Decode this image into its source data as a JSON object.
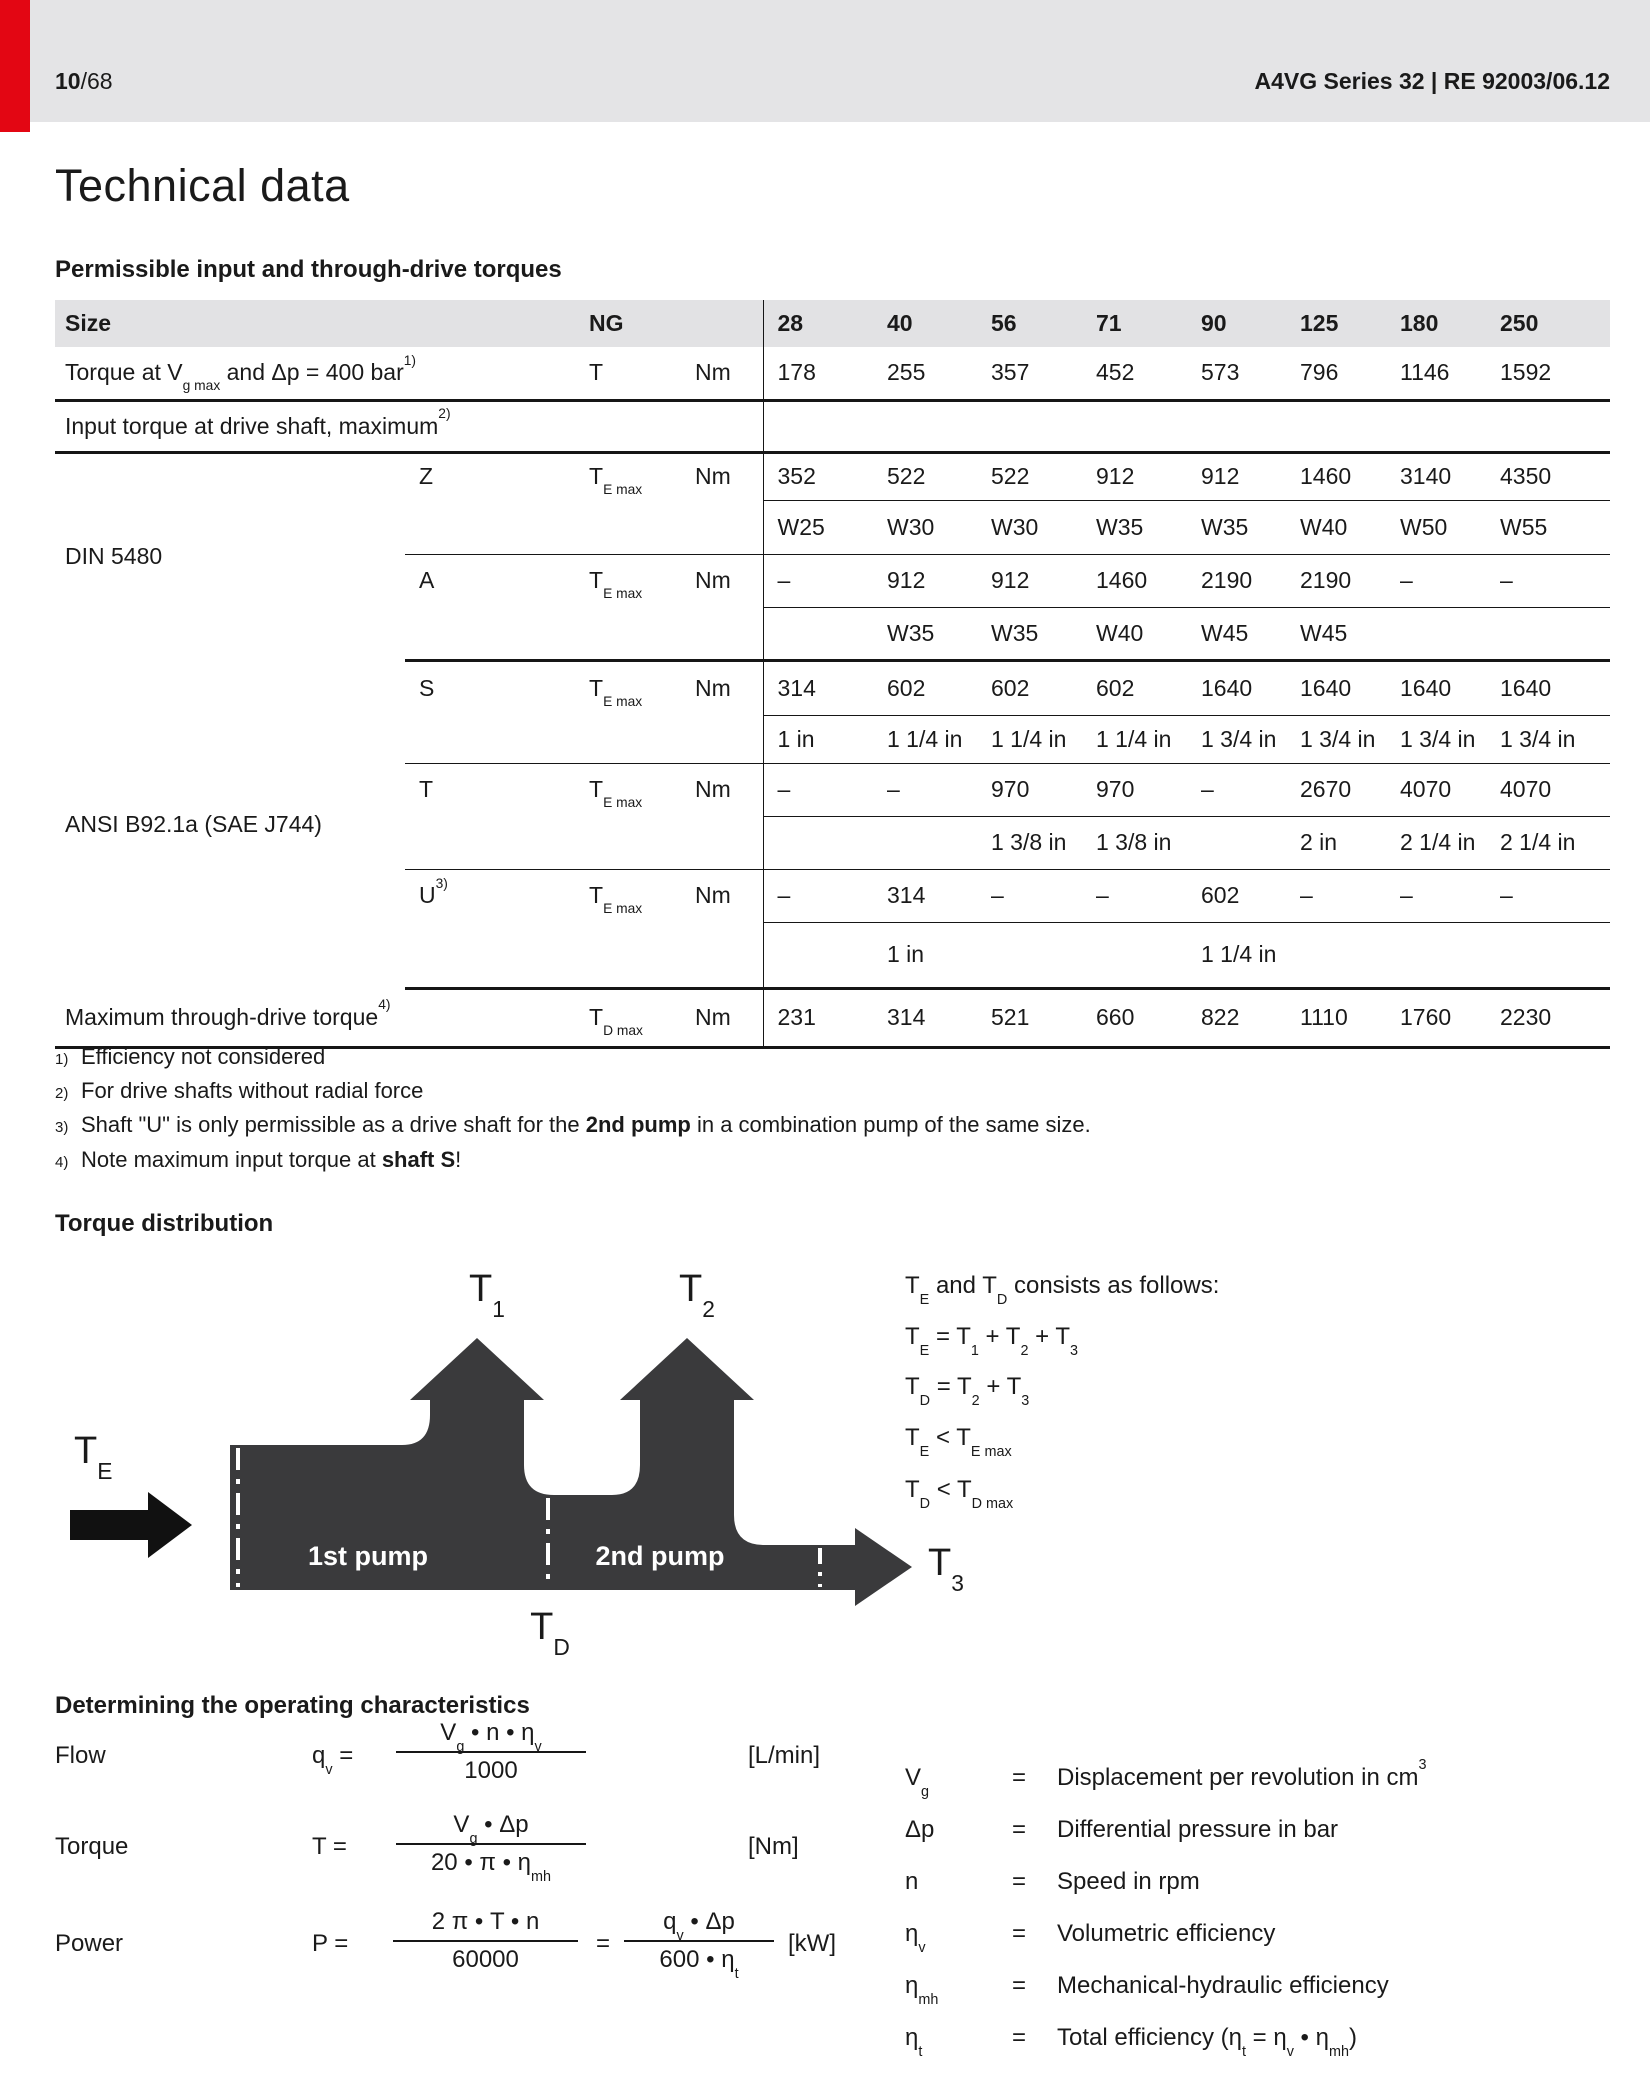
{
  "page": {
    "page_number": "10",
    "page_total": "/68",
    "doc_ref": "A4VG Series 32  |  RE 92003/06.12",
    "title": "Technical data",
    "section_title": "Permissible input and through-drive torques"
  },
  "table": {
    "header": {
      "size": "Size",
      "ng": "NG",
      "sizes": [
        "28",
        "40",
        "56",
        "71",
        "90",
        "125",
        "180",
        "250"
      ]
    },
    "torque_row": {
      "label": "Torque at V_{g max} and Δp = 400 bar^{1)}",
      "symbol": "T",
      "unit": "Nm",
      "values": [
        "178",
        "255",
        "357",
        "452",
        "573",
        "796",
        "1146",
        "1592"
      ]
    },
    "input_torque_label": "Input torque at drive shaft, maximum^{2)}",
    "din": {
      "group": "DIN 5480",
      "z": {
        "shaft": "Z",
        "symbol": "T_{E max}",
        "unit": "Nm",
        "values": [
          "352",
          "522",
          "522",
          "912",
          "912",
          "1460",
          "3140",
          "4350"
        ],
        "sub": [
          "W25",
          "W30",
          "W30",
          "W35",
          "W35",
          "W40",
          "W50",
          "W55"
        ]
      },
      "a": {
        "shaft": "A",
        "symbol": "T_{E max}",
        "unit": "Nm",
        "values": [
          "–",
          "912",
          "912",
          "1460",
          "2190",
          "2190",
          "–",
          "–"
        ],
        "sub": [
          "",
          "W35",
          "W35",
          "W40",
          "W45",
          "W45",
          "",
          ""
        ]
      }
    },
    "ansi": {
      "group": "ANSI B92.1a (SAE J744)",
      "s": {
        "shaft": "S",
        "symbol": "T_{E max}",
        "unit": "Nm",
        "values": [
          "314",
          "602",
          "602",
          "602",
          "1640",
          "1640",
          "1640",
          "1640"
        ],
        "sub": [
          "1 in",
          "1 1/4 in",
          "1 1/4 in",
          "1 1/4 in",
          "1 3/4 in",
          "1 3/4 in",
          "1 3/4 in",
          "1 3/4 in"
        ]
      },
      "t": {
        "shaft": "T",
        "symbol": "T_{E max}",
        "unit": "Nm",
        "values": [
          "–",
          "–",
          "970",
          "970",
          "–",
          "2670",
          "4070",
          "4070"
        ],
        "sub": [
          "",
          "",
          "1 3/8 in",
          "1 3/8 in",
          "",
          "2 in",
          "2 1/4 in",
          "2 1/4 in"
        ]
      },
      "u": {
        "shaft": "U^{3)}",
        "symbol": "T_{E max}",
        "unit": "Nm",
        "values": [
          "–",
          "314",
          "–",
          "–",
          "602",
          "–",
          "–",
          "–"
        ],
        "sub": [
          "",
          "1 in",
          "",
          "",
          "1 1/4 in",
          "",
          "",
          ""
        ]
      }
    },
    "through_drive_row": {
      "label": "Maximum through-drive torque^{4)}",
      "symbol": "T_{D max}",
      "unit": "Nm",
      "values": [
        "231",
        "314",
        "521",
        "660",
        "822",
        "1110",
        "1760",
        "2230"
      ]
    }
  },
  "footnotes": [
    {
      "marker": "1)",
      "text": "Efficiency not considered"
    },
    {
      "marker": "2)",
      "text": "For drive shafts without radial force"
    },
    {
      "marker": "3)",
      "text": "Shaft \"U\" is only permissible as a drive shaft for the **2nd pump** in a combination pump of the same size."
    },
    {
      "marker": "4)",
      "text": "Note maximum input torque at **shaft S**!"
    }
  ],
  "torque_distribution": {
    "heading": "Torque distribution",
    "labels": {
      "t1": "T_{1}",
      "t2": "T_{2}",
      "t3": "T_{3}",
      "te": "T_{E}",
      "td": "T_{D}",
      "pump1": "1st pump",
      "pump2": "2nd pump"
    },
    "equations": [
      "T_{E} and T_{D} consists as follows:",
      "T_{E} = T_{1} + T_{2} + T_{3}",
      "T_{D} = T_{2} + T_{3}",
      "T_{E} < T_{E max}",
      "T_{D} < T_{D max}"
    ]
  },
  "operating": {
    "heading": "Determining the operating characteristics",
    "flow": {
      "label": "Flow",
      "lhs": "q_{v} =",
      "numerator": "V_{g} • n • η_{v}",
      "denominator": "1000",
      "unit": "[L/min]"
    },
    "torque": {
      "label": "Torque",
      "lhs": "T  =",
      "numerator": "V_{g} • Δp",
      "denominator": "20 • π • η_{mh}",
      "unit": "[Nm]"
    },
    "power": {
      "label": "Power",
      "lhs": "P  =",
      "numerator": "2 π • T • n",
      "denominator": "60000",
      "eq2": "=",
      "numerator2": "q_{v} • Δp",
      "denominator2": "600 • η_{t}",
      "unit": "[kW]"
    }
  },
  "legend": [
    {
      "symbol": "V_{g}",
      "eq": "=",
      "text": "Displacement per revolution in cm^{3}"
    },
    {
      "symbol": "Δp",
      "eq": "=",
      "text": "Differential pressure in bar"
    },
    {
      "symbol": "n",
      "eq": "=",
      "text": "Speed in rpm"
    },
    {
      "symbol": "η_{v}",
      "eq": "=",
      "text": "Volumetric efficiency"
    },
    {
      "symbol": "η_{mh}",
      "eq": "=",
      "text": "Mechanical-hydraulic efficiency"
    },
    {
      "symbol": "η_{t}",
      "eq": "=",
      "text": "Total efficiency (η_{t} = η_{v} • η_{mh})"
    }
  ],
  "colors": {
    "accent_red": "#e30613",
    "header_band": "#e4e4e6",
    "table_header_bg": "#e2e2e4",
    "diagram_fill": "#3a3a3c"
  }
}
